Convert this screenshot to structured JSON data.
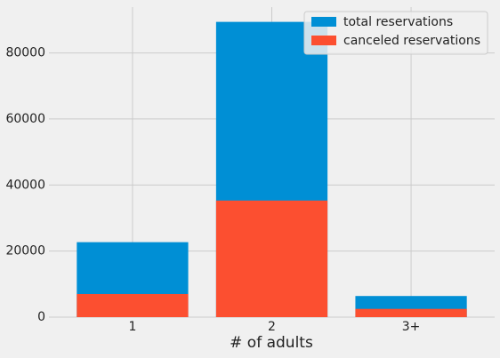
{
  "chart_data": {
    "type": "bar",
    "overlap": true,
    "xlabel": "# of adults",
    "categories": [
      "1",
      "2",
      "3+"
    ],
    "series": [
      {
        "name": "total reservations",
        "color": "#008fd5",
        "values": [
          22700,
          89400,
          6400
        ]
      },
      {
        "name": "canceled reservations",
        "color": "#fc4f30",
        "values": [
          7000,
          35300,
          2500
        ]
      }
    ],
    "ylim": [
      0,
      93870
    ],
    "yticks": [
      0,
      20000,
      40000,
      60000,
      80000
    ],
    "grid": true,
    "legend": "upper right"
  }
}
